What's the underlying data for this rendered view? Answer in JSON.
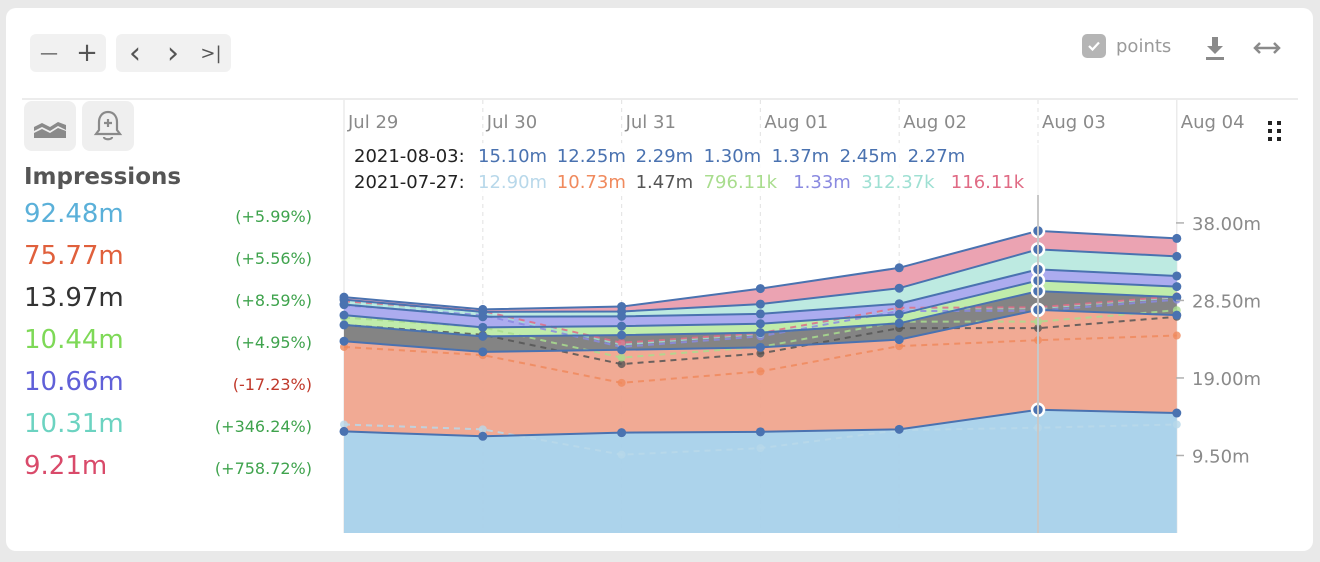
{
  "toolbar": {
    "zoom_out": "—",
    "zoom_in": "+",
    "prev": "‹",
    "next": "›",
    "last": ">|",
    "points_label": "points"
  },
  "legend": {
    "title": "Impressions",
    "items": [
      {
        "value": "92.48m",
        "change": "(+5.99%)",
        "color": "#5ab0d9",
        "change_color": "#3fa34d"
      },
      {
        "value": "75.77m",
        "change": "(+5.56%)",
        "color": "#e0603c",
        "change_color": "#3fa34d"
      },
      {
        "value": "13.97m",
        "change": "(+8.59%)",
        "color": "#333333",
        "change_color": "#3fa34d"
      },
      {
        "value": "10.44m",
        "change": "(+4.95%)",
        "color": "#7ed957",
        "change_color": "#3fa34d"
      },
      {
        "value": "10.66m",
        "change": "(-17.23%)",
        "color": "#6060d8",
        "change_color": "#c0392b"
      },
      {
        "value": "10.31m",
        "change": "(+346.24%)",
        "color": "#6cd3c1",
        "change_color": "#3fa34d"
      },
      {
        "value": "9.21m",
        "change": "(+758.72%)",
        "color": "#d94a6a",
        "change_color": "#3fa34d"
      }
    ]
  },
  "tooltip": {
    "current_label": "2021-08-03:",
    "current_values": [
      "15.10m",
      "12.25m",
      "2.29m",
      "1.30m",
      "1.37m",
      "2.45m",
      "2.27m"
    ],
    "compare_label": "2021-07-27:",
    "compare_values": [
      "12.90m",
      "10.73m",
      "1.47m",
      "796.11k",
      "1.33m",
      "312.37k",
      "116.11k"
    ]
  },
  "chart_data": {
    "type": "area",
    "stacked": true,
    "x": [
      "Jul 29",
      "Jul 30",
      "Jul 31",
      "Aug 01",
      "Aug 02",
      "Aug 03",
      "Aug 04"
    ],
    "y_ticks": [
      "38.00m",
      "28.50m",
      "19.00m",
      "9.50m"
    ],
    "y_tick_values": [
      38,
      28.5,
      19,
      9.5
    ],
    "ylim": [
      0,
      38
    ],
    "hover_index": 5,
    "series": [
      {
        "color": "#a8d1ea",
        "line": "#4a72b0",
        "values": [
          12.45,
          11.85,
          12.3,
          12.4,
          12.7,
          15.1,
          14.7
        ]
      },
      {
        "color": "#f0a58e",
        "line": "#4a72b0",
        "values": [
          11.05,
          10.35,
          10.15,
          10.35,
          11.0,
          12.25,
          12.0
        ]
      },
      {
        "color": "#7d7d7d",
        "line": "#4a72b0",
        "values": [
          2.0,
          1.9,
          1.8,
          1.8,
          2.0,
          2.29,
          2.2
        ]
      },
      {
        "color": "#bdeba6",
        "line": "#4a72b0",
        "values": [
          1.2,
          1.1,
          1.1,
          1.1,
          1.1,
          1.3,
          1.3
        ]
      },
      {
        "color": "#a8a8ee",
        "line": "#4a72b0",
        "values": [
          1.3,
          1.3,
          1.2,
          1.2,
          1.3,
          1.37,
          1.3
        ]
      },
      {
        "color": "#b9e9df",
        "line": "#4a72b0",
        "values": [
          0.6,
          0.6,
          0.6,
          1.2,
          1.9,
          2.45,
          2.4
        ]
      },
      {
        "color": "#ea9eae",
        "line": "#4a72b0",
        "values": [
          0.3,
          0.3,
          0.6,
          1.9,
          2.5,
          2.27,
          2.2
        ]
      }
    ],
    "comparison_series": [
      {
        "color": "#b8d8ea",
        "values": [
          13.3,
          12.7,
          9.6,
          10.4,
          12.6,
          12.9,
          13.3
        ]
      },
      {
        "color": "#f08a5d",
        "values": [
          9.5,
          9.1,
          8.8,
          9.4,
          10.3,
          10.73,
          10.9
        ]
      },
      {
        "color": "#555555",
        "values": [
          2.7,
          2.5,
          2.3,
          2.2,
          2.2,
          1.47,
          2.3
        ]
      },
      {
        "color": "#a9dd8e",
        "values": [
          0.9,
          0.9,
          0.8,
          0.8,
          0.8,
          0.8,
          0.8
        ]
      },
      {
        "color": "#8a8ae0",
        "values": [
          1.5,
          1.5,
          1.3,
          1.3,
          1.3,
          1.33,
          1.3
        ]
      },
      {
        "color": "#9fe0d3",
        "values": [
          0.3,
          0.3,
          0.3,
          0.3,
          0.3,
          0.31,
          0.3
        ]
      },
      {
        "color": "#e06b85",
        "values": [
          0.2,
          0.2,
          0.2,
          0.1,
          0.1,
          0.12,
          0.1
        ]
      }
    ]
  }
}
